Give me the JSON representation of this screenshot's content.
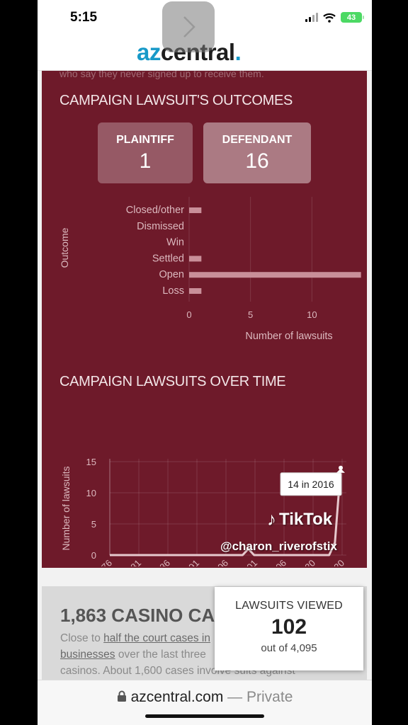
{
  "status_bar": {
    "time": "5:15",
    "battery": "43"
  },
  "header": {
    "logo_part1": "az",
    "logo_part2": "central",
    "logo_dot": "."
  },
  "article": {
    "clipped_text": "who say they never signed up to receive them."
  },
  "outcomes": {
    "title": "CAMPAIGN LAWSUIT'S OUTCOMES",
    "plaintiff_label": "PLAINTIFF",
    "plaintiff_value": "1",
    "defendant_label": "DEFENDANT",
    "defendant_value": "16"
  },
  "over_time": {
    "title": "CAMPAIGN LAWSUITS OVER TIME",
    "tooltip": "14 in 2016"
  },
  "chart_data": [
    {
      "type": "bar",
      "orientation": "horizontal",
      "categories": [
        "Closed/other",
        "Dismissed",
        "Win",
        "Settled",
        "Open",
        "Loss"
      ],
      "values": [
        1,
        0,
        0,
        1,
        14,
        1
      ],
      "xlabel": "Number of lawsuits",
      "ylabel": "Outcome",
      "xticks": [
        "0",
        "5",
        "10",
        "15"
      ],
      "xlim": [
        0,
        15
      ],
      "grid": true
    },
    {
      "type": "line",
      "x": [
        1976,
        1999,
        2000,
        2001,
        2014,
        2015,
        2016
      ],
      "y": [
        0,
        0,
        1,
        0,
        0,
        2,
        14
      ],
      "xticks": [
        "1976",
        "1981",
        "1986",
        "1991",
        "1996",
        "2001",
        "2006",
        "20",
        "20"
      ],
      "yticks": [
        "0",
        "5",
        "10",
        "15"
      ],
      "ylabel": "Number of lawsuits",
      "xlim": [
        1976,
        2016
      ],
      "ylim": [
        0,
        15
      ],
      "grid": true
    }
  ],
  "casino": {
    "heading": "1,863 CASINO CA",
    "body_pre": "Close to ",
    "body_link1": "half the court cases in",
    "body_link2": "businesses",
    "body_mid": " over the last three",
    "body_end": "casinos. About 1,600 cases involve suits against"
  },
  "viewed": {
    "label": "LAWSUITS VIEWED",
    "count": "102",
    "total": "out of 4,095"
  },
  "tiktok": {
    "brand": "TikTok",
    "handle": "@charon_riverofstix"
  },
  "url_bar": {
    "domain": "azcentral.com",
    "separator": " — ",
    "mode": "Private"
  },
  "colors": {
    "panel": "#6e1a2a",
    "brand_blue": "#1799c8",
    "bar": "#c98f99"
  },
  "icons": {
    "overlay": "chevron-right-icon",
    "lock": "lock-icon",
    "wifi": "wifi-icon"
  }
}
